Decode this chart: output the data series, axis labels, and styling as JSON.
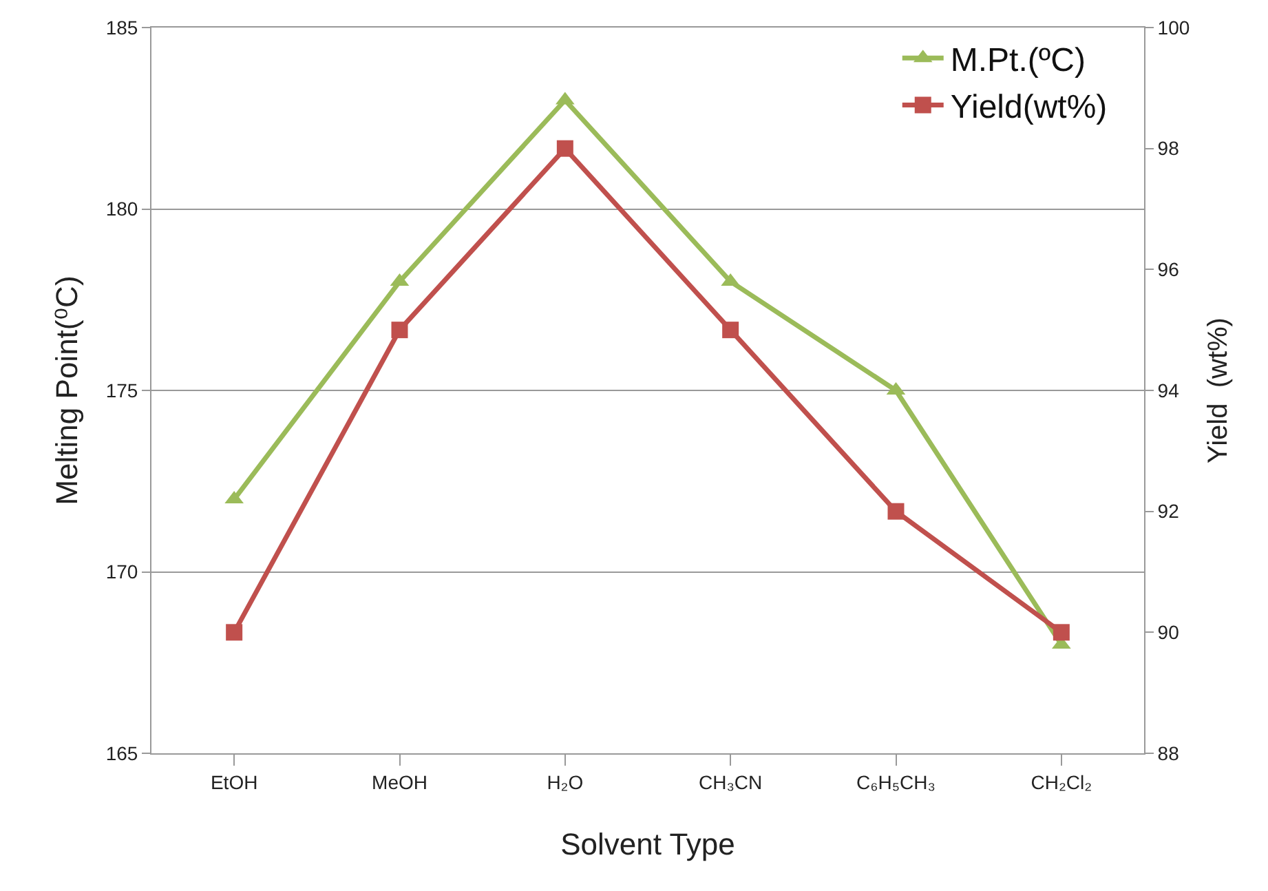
{
  "chart_data": {
    "type": "line",
    "xlabel": "Solvent Type",
    "ylabel": "Melting Point(⁰C)",
    "y2label": "Yield  (wt%)",
    "categories": [
      "EtOH",
      "MeOH",
      "H₂O",
      "CH₃CN",
      "C₆H₅CH₃",
      "CH₂Cl₂"
    ],
    "series": [
      {
        "name": "M.Pt.(ºC)",
        "color": "#9bbb59",
        "marker": "triangle",
        "values": [
          172,
          178,
          183,
          178,
          175,
          168
        ]
      },
      {
        "name": "Yield(wt%)",
        "color": "#c0504d",
        "marker": "square",
        "axis": "y2",
        "values": [
          90,
          95,
          98,
          95,
          92,
          90
        ]
      }
    ],
    "ylim": [
      165,
      185
    ],
    "yticks": [
      165,
      170,
      175,
      180,
      185
    ],
    "y2lim": [
      88,
      100
    ],
    "y2ticks": [
      88,
      90,
      92,
      94,
      96,
      98,
      100
    ],
    "grid": "y",
    "legend": "top right",
    "line_style": "solid"
  }
}
